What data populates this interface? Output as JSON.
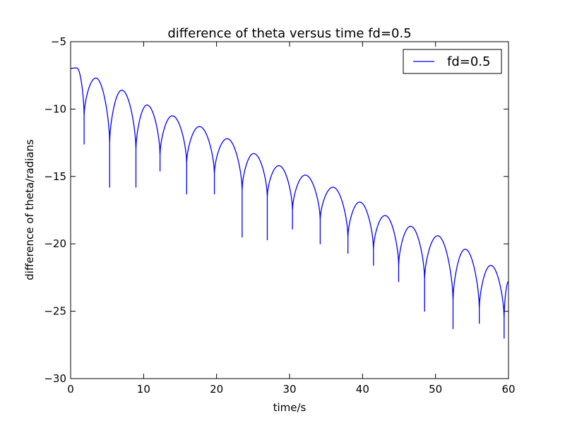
{
  "chart_data": {
    "type": "line",
    "title": "difference of theta versus time  fd=0.5",
    "xlabel": "time/s",
    "ylabel": "difference of theta/radians",
    "xlim": [
      0,
      60
    ],
    "ylim": [
      -30,
      -5
    ],
    "xticks": [
      0,
      10,
      20,
      30,
      40,
      50,
      60
    ],
    "yticks": [
      -30,
      -25,
      -20,
      -15,
      -10,
      -5
    ],
    "xtick_labels": [
      "0",
      "10",
      "20",
      "30",
      "40",
      "50",
      "60"
    ],
    "ytick_labels": [
      "−30",
      "−25",
      "−20",
      "−15",
      "−10",
      "−5"
    ],
    "grid": false,
    "legend_position": "top-right",
    "series": [
      {
        "name": "fd=0.5",
        "color": "#0000ff",
        "arches": [
          {
            "t0": 0.0,
            "t1": 1.85,
            "left": -7.0,
            "peak": -6.95,
            "right": -10.5,
            "tip": -12.6
          },
          {
            "t0": 1.85,
            "t1": 5.35,
            "left": -10.5,
            "peak": -7.7,
            "right": -12.5,
            "tip": -15.8
          },
          {
            "t0": 5.35,
            "t1": 8.95,
            "left": -12.5,
            "peak": -8.6,
            "right": -13.0,
            "tip": -15.8
          },
          {
            "t0": 8.95,
            "t1": 12.25,
            "left": -13.0,
            "peak": -9.7,
            "right": -13.4,
            "tip": -14.6
          },
          {
            "t0": 12.25,
            "t1": 15.9,
            "left": -13.4,
            "peak": -10.5,
            "right": -14.0,
            "tip": -16.3
          },
          {
            "t0": 15.9,
            "t1": 19.7,
            "left": -14.0,
            "peak": -11.3,
            "right": -14.8,
            "tip": -16.3
          },
          {
            "t0": 19.7,
            "t1": 23.5,
            "left": -14.8,
            "peak": -12.2,
            "right": -16.0,
            "tip": -19.5
          },
          {
            "t0": 23.5,
            "t1": 26.95,
            "left": -16.0,
            "peak": -13.3,
            "right": -16.5,
            "tip": -19.7
          },
          {
            "t0": 26.95,
            "t1": 30.4,
            "left": -16.5,
            "peak": -14.2,
            "right": -17.5,
            "tip": -18.9
          },
          {
            "t0": 30.4,
            "t1": 34.2,
            "left": -17.5,
            "peak": -14.9,
            "right": -18.2,
            "tip": -20.0
          },
          {
            "t0": 34.2,
            "t1": 38.0,
            "left": -18.2,
            "peak": -15.8,
            "right": -19.5,
            "tip": -20.7
          },
          {
            "t0": 38.0,
            "t1": 41.5,
            "left": -19.5,
            "peak": -16.9,
            "right": -20.4,
            "tip": -21.6
          },
          {
            "t0": 41.5,
            "t1": 44.95,
            "left": -20.4,
            "peak": -17.9,
            "right": -21.6,
            "tip": -22.8
          },
          {
            "t0": 44.95,
            "t1": 48.5,
            "left": -21.6,
            "peak": -18.7,
            "right": -22.6,
            "tip": -25.0
          },
          {
            "t0": 48.5,
            "t1": 52.4,
            "left": -22.6,
            "peak": -19.4,
            "right": -24.2,
            "tip": -26.3
          },
          {
            "t0": 52.4,
            "t1": 56.0,
            "left": -24.2,
            "peak": -20.4,
            "right": -24.8,
            "tip": -25.9
          },
          {
            "t0": 56.0,
            "t1": 59.4,
            "left": -24.8,
            "peak": -21.6,
            "right": -25.5,
            "tip": -27.0
          },
          {
            "t0": 59.4,
            "t1": 60.0,
            "left": -25.5,
            "peak": -22.8,
            "right": -22.8,
            "tip": -22.8
          }
        ]
      }
    ]
  }
}
